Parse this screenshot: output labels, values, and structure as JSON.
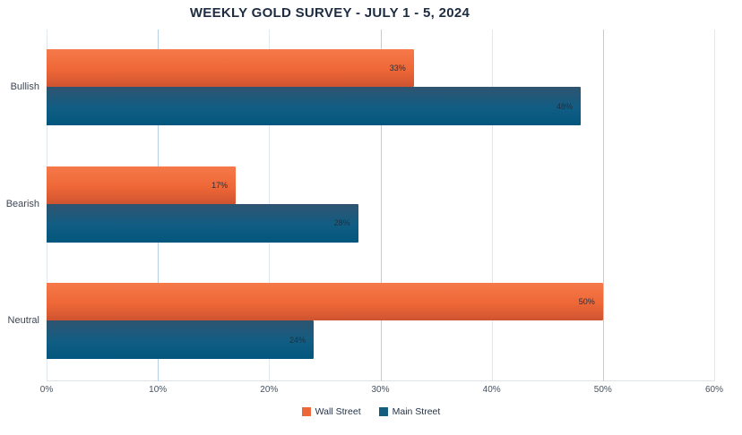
{
  "chart_data": {
    "type": "bar",
    "orientation": "horizontal",
    "title": "WEEKLY GOLD SURVEY - JULY 1 - 5, 2024",
    "categories": [
      "Bullish",
      "Bearish",
      "Neutral"
    ],
    "series": [
      {
        "name": "Wall Street",
        "values": [
          33,
          17,
          50
        ],
        "value_labels": [
          "33%",
          "17%",
          "50%"
        ],
        "swatch": "#ec683a",
        "gradient": [
          "#f6794a",
          "#ee6737",
          "#cf5431"
        ]
      },
      {
        "name": "Main Street",
        "values": [
          48,
          28,
          24
        ],
        "value_labels": [
          "48%",
          "28%",
          "24%"
        ],
        "swatch": "#135d7e",
        "gradient": [
          "#2f5470",
          "#115d84",
          "#02567d"
        ]
      }
    ],
    "xlabel": "",
    "ylabel": "",
    "x_ticks": [
      "0%",
      "10%",
      "20%",
      "30%",
      "40%",
      "50%",
      "60%"
    ],
    "x_tick_values": [
      0,
      10,
      20,
      30,
      40,
      50,
      60
    ],
    "xlim": [
      0,
      60
    ],
    "grid": true,
    "legend_position": "bottom"
  },
  "colors": {
    "background": "#ffffff",
    "title_text": "#1e2c42",
    "category_text": "#3d4654",
    "tick_text": "#45505e",
    "value_label_text": "#1e3040",
    "legend_text": "#243347",
    "gridline_major": "#b5cfe8",
    "gridline_minor": "#e0e8ef",
    "axis_line": "#dde3e9"
  }
}
